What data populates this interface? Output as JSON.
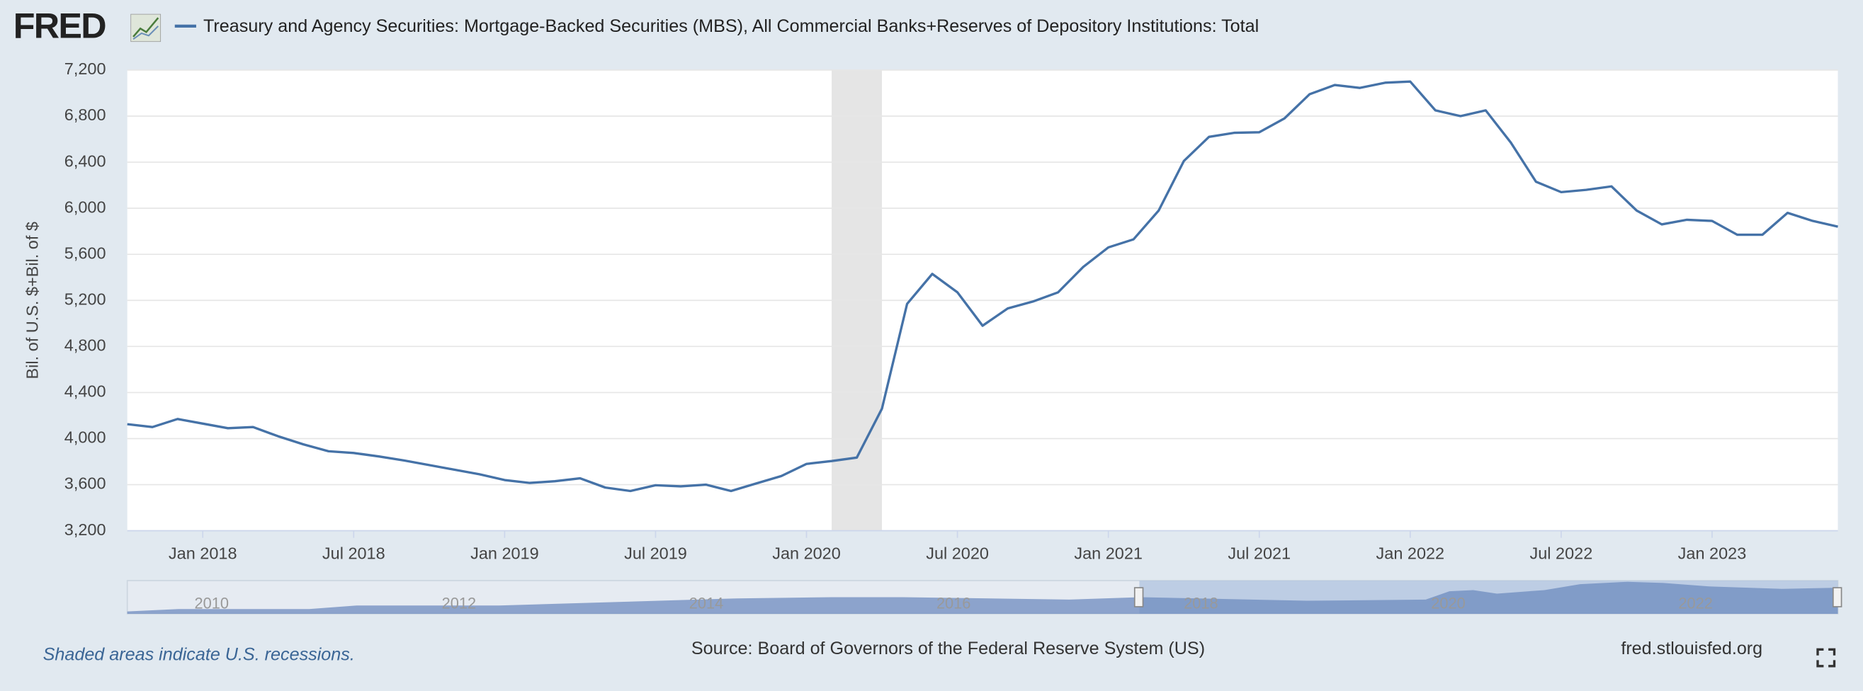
{
  "header": {
    "logo": "FRED"
  },
  "chart_data": {
    "type": "line",
    "series": [
      {
        "name": "Treasury and Agency Securities: Mortgage-Backed Securities (MBS), All Commercial Banks+Reserves of Depository Institutions: Total",
        "color": "#4572a7",
        "values": [
          4125,
          4100,
          4170,
          4130,
          4090,
          4100,
          4020,
          3950,
          3890,
          3875,
          3845,
          3810,
          3770,
          3730,
          3690,
          3640,
          3615,
          3630,
          3655,
          3575,
          3545,
          3595,
          3585,
          3600,
          3545,
          3610,
          3675,
          3780,
          3805,
          3835,
          4260,
          5170,
          5430,
          5270,
          4980,
          5130,
          5190,
          5270,
          5490,
          5660,
          5730,
          5980,
          6410,
          6620,
          6655,
          6660,
          6780,
          6990,
          7070,
          7045,
          7090,
          7100,
          6850,
          6800,
          6850,
          6570,
          6230,
          6140,
          6160,
          6190,
          5980,
          5860,
          5900,
          5890,
          5770,
          5770,
          5960,
          5890,
          5840
        ]
      }
    ],
    "x": [
      "2017-10",
      "2017-11",
      "2017-12",
      "2018-01",
      "2018-02",
      "2018-03",
      "2018-04",
      "2018-05",
      "2018-06",
      "2018-07",
      "2018-08",
      "2018-09",
      "2018-10",
      "2018-11",
      "2018-12",
      "2019-01",
      "2019-02",
      "2019-03",
      "2019-04",
      "2019-05",
      "2019-06",
      "2019-07",
      "2019-08",
      "2019-09",
      "2019-10",
      "2019-11",
      "2019-12",
      "2020-01",
      "2020-02",
      "2020-03",
      "2020-04",
      "2020-05",
      "2020-06",
      "2020-07",
      "2020-08",
      "2020-09",
      "2020-10",
      "2020-11",
      "2020-12",
      "2021-01",
      "2021-02",
      "2021-03",
      "2021-04",
      "2021-05",
      "2021-06",
      "2021-07",
      "2021-08",
      "2021-09",
      "2021-10",
      "2021-11",
      "2021-12",
      "2022-01",
      "2022-02",
      "2022-03",
      "2022-04",
      "2022-05",
      "2022-06",
      "2022-07",
      "2022-08",
      "2022-09",
      "2022-10",
      "2022-11",
      "2022-12",
      "2023-01",
      "2023-02",
      "2023-03",
      "2023-04",
      "2023-05",
      "2023-06"
    ],
    "xlim": [
      "2017-10",
      "2023-06"
    ],
    "xticks": [
      {
        "value": "2018-01",
        "label": "Jan 2018"
      },
      {
        "value": "2018-07",
        "label": "Jul 2018"
      },
      {
        "value": "2019-01",
        "label": "Jan 2019"
      },
      {
        "value": "2019-07",
        "label": "Jul 2019"
      },
      {
        "value": "2020-01",
        "label": "Jan 2020"
      },
      {
        "value": "2020-07",
        "label": "Jul 2020"
      },
      {
        "value": "2021-01",
        "label": "Jan 2021"
      },
      {
        "value": "2021-07",
        "label": "Jul 2021"
      },
      {
        "value": "2022-01",
        "label": "Jan 2022"
      },
      {
        "value": "2022-07",
        "label": "Jul 2022"
      },
      {
        "value": "2023-01",
        "label": "Jan 2023"
      }
    ],
    "ylim": [
      3200,
      7200
    ],
    "yticks": [
      {
        "value": 3200,
        "label": "3,200"
      },
      {
        "value": 3600,
        "label": "3,600"
      },
      {
        "value": 4000,
        "label": "4,000"
      },
      {
        "value": 4400,
        "label": "4,400"
      },
      {
        "value": 4800,
        "label": "4,800"
      },
      {
        "value": 5200,
        "label": "5,200"
      },
      {
        "value": 5600,
        "label": "5,600"
      },
      {
        "value": 6000,
        "label": "6,000"
      },
      {
        "value": 6400,
        "label": "6,400"
      },
      {
        "value": 6800,
        "label": "6,800"
      },
      {
        "value": 7200,
        "label": "7,200"
      }
    ],
    "ylabel": "Bil. of U.S. $+Bil. of $",
    "grid": true,
    "recessions": [
      {
        "start": "2020-02",
        "end": "2020-04"
      }
    ]
  },
  "navigator": {
    "labels": [
      "2010",
      "2012",
      "2014",
      "2016",
      "2018",
      "2020",
      "2022"
    ]
  },
  "footer": {
    "note": "Shaded areas indicate U.S. recessions.",
    "source": "Source: Board of Governors of the Federal Reserve System (US)",
    "site": "fred.stlouisfed.org"
  }
}
